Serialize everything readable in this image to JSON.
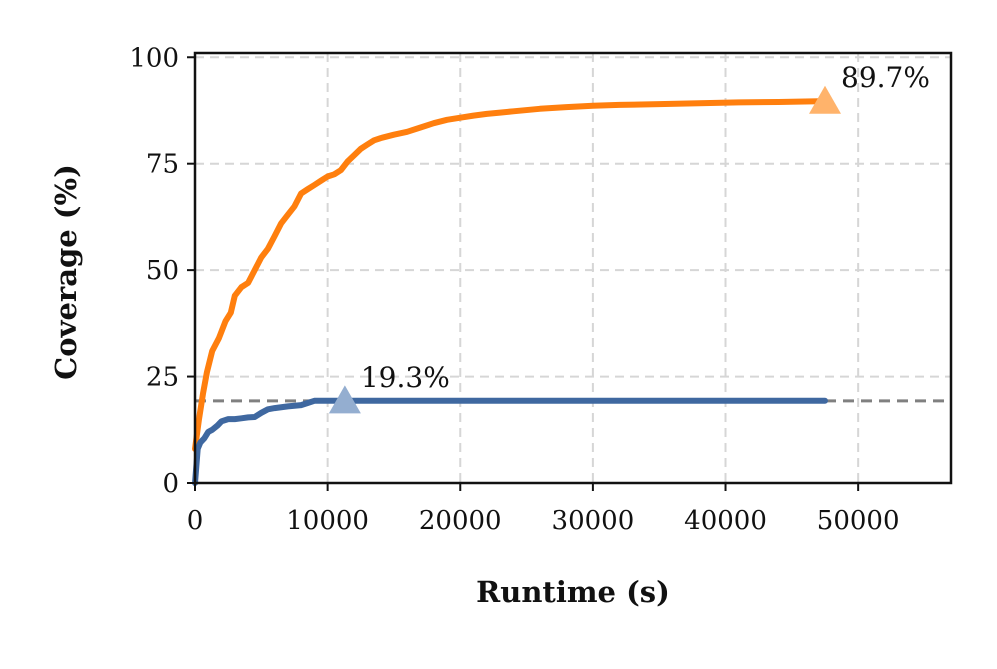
{
  "chart_data": {
    "type": "line",
    "xlabel": "Runtime (s)",
    "ylabel": "Coverage (%)",
    "xlim": [
      0,
      57000
    ],
    "ylim": [
      0,
      101
    ],
    "xticks": [
      0,
      10000,
      20000,
      30000,
      40000,
      50000
    ],
    "xtick_labels": [
      "0",
      "10000",
      "20000",
      "30000",
      "40000",
      "50000"
    ],
    "yticks": [
      0,
      25,
      50,
      75,
      100
    ],
    "ytick_labels": [
      "0",
      "25",
      "50",
      "75",
      "100"
    ],
    "grid": true,
    "reference_line": {
      "y": 19.3,
      "style": "dashed",
      "color": "#808080"
    },
    "series": [
      {
        "color": "#ff7f0e",
        "marker_color": "#ffb36b",
        "x": [
          0,
          300,
          600,
          900,
          1300,
          1800,
          2300,
          2700,
          3000,
          3500,
          4000,
          4500,
          5000,
          5500,
          6000,
          6500,
          7000,
          7500,
          8000,
          8500,
          9000,
          9500,
          10000,
          10500,
          11000,
          11500,
          12000,
          12500,
          13000,
          13500,
          14000,
          15000,
          16000,
          17000,
          18000,
          19000,
          20000,
          21000,
          22000,
          23000,
          24000,
          26000,
          28000,
          30000,
          32000,
          35000,
          38000,
          41000,
          44000,
          47500
        ],
        "y": [
          8,
          15,
          21,
          26,
          31,
          34,
          38,
          40,
          44,
          46,
          47,
          50,
          53,
          55,
          58,
          61,
          63,
          65,
          68,
          69,
          70,
          71,
          72,
          72.5,
          73.5,
          75.5,
          77,
          78.5,
          79.5,
          80.5,
          81,
          81.8,
          82.5,
          83.5,
          84.5,
          85.3,
          85.8,
          86.3,
          86.7,
          87,
          87.3,
          87.9,
          88.3,
          88.6,
          88.8,
          89.0,
          89.2,
          89.4,
          89.5,
          89.7
        ],
        "final": {
          "x": 47500,
          "y": 89.7,
          "label": "89.7%"
        }
      },
      {
        "color": "#3f68a0",
        "marker_color": "#94aed0",
        "x": [
          0,
          200,
          400,
          700,
          1000,
          1300,
          1700,
          2000,
          2500,
          3000,
          3500,
          4000,
          4500,
          5000,
          5500,
          6000,
          7000,
          8000,
          8500,
          9000,
          11000,
          15000,
          20000,
          30000,
          40000,
          47500
        ],
        "y": [
          0,
          8,
          9.5,
          10.5,
          12,
          12.5,
          13.5,
          14.5,
          15,
          15,
          15.2,
          15.4,
          15.5,
          16.5,
          17.3,
          17.6,
          18.0,
          18.3,
          18.8,
          19.3,
          19.3,
          19.3,
          19.3,
          19.3,
          19.3,
          19.3
        ],
        "final": {
          "x": 11300,
          "y": 19.3,
          "label": "19.3%"
        }
      }
    ]
  }
}
